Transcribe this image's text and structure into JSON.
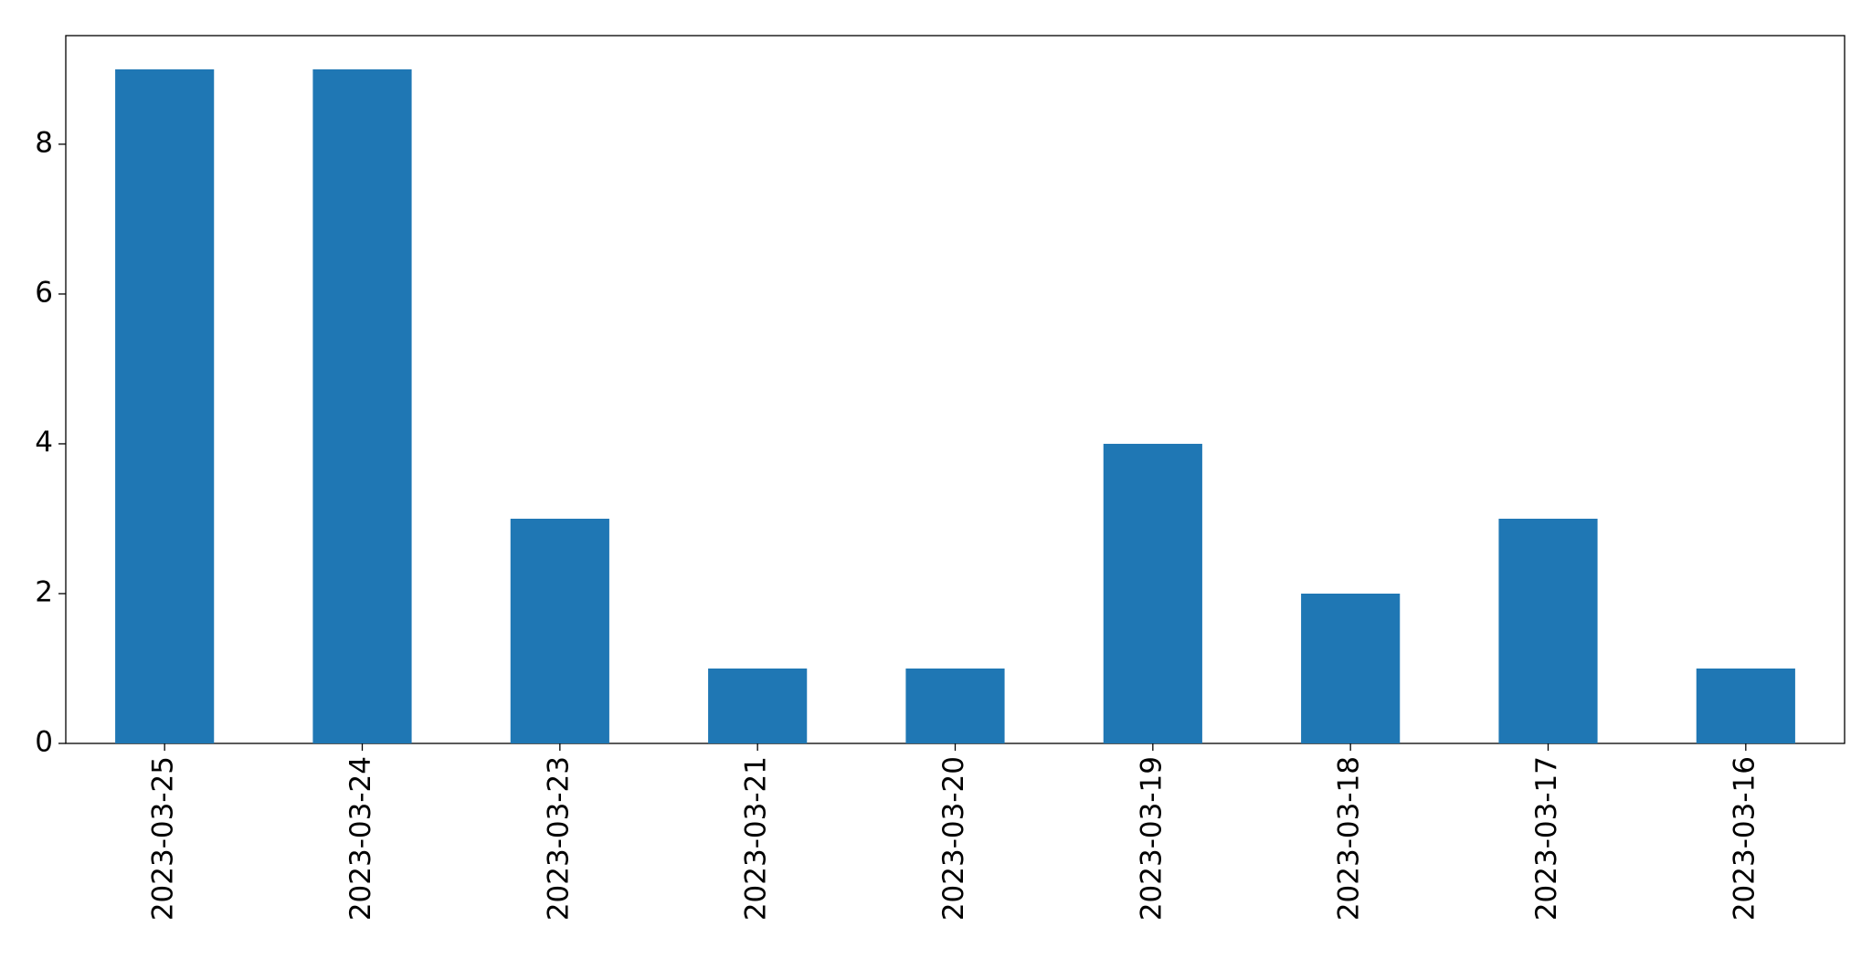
{
  "chart_data": {
    "type": "bar",
    "categories": [
      "2023-03-25",
      "2023-03-24",
      "2023-03-23",
      "2023-03-21",
      "2023-03-20",
      "2023-03-19",
      "2023-03-18",
      "2023-03-17",
      "2023-03-16"
    ],
    "values": [
      9,
      9,
      3,
      1,
      1,
      4,
      2,
      3,
      1
    ],
    "color": "#1f77b4",
    "ylim": [
      0,
      9.45
    ],
    "yticks": [
      0,
      2,
      4,
      6,
      8
    ],
    "grid": false
  }
}
